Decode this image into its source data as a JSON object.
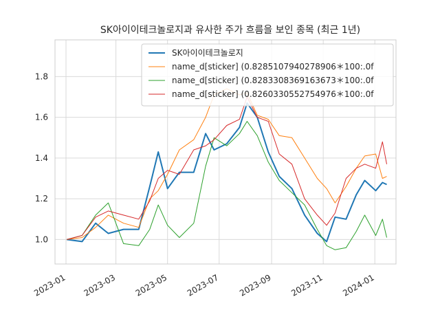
{
  "chart_data": {
    "type": "line",
    "title": "SK아이이테크놀로지과 유사한 주가 흐름을 보인 종목 (최근 1년)",
    "xlabel": "",
    "ylabel": "",
    "x_ticks": [
      "2023-01",
      "2023-03",
      "2023-05",
      "2023-07",
      "2023-09",
      "2023-11",
      "2024-01"
    ],
    "y_ticks": [
      "1.0",
      "1.2",
      "1.4",
      "1.6",
      "1.8"
    ],
    "xlim": [
      "2022-12-19",
      "2024-01-26"
    ],
    "ylim": [
      0.88,
      1.98
    ],
    "grid": true,
    "legend_position": "upper-right",
    "series": [
      {
        "name": "SK아이이테크놀로지",
        "color": "#1f77b4",
        "linewidth": 2,
        "points": [
          [
            "2023-01-02",
            1.0
          ],
          [
            "2023-01-20",
            0.99
          ],
          [
            "2023-02-05",
            1.08
          ],
          [
            "2023-02-20",
            1.03
          ],
          [
            "2023-03-10",
            1.05
          ],
          [
            "2023-03-28",
            1.05
          ],
          [
            "2023-04-10",
            1.26
          ],
          [
            "2023-04-20",
            1.43
          ],
          [
            "2023-05-01",
            1.25
          ],
          [
            "2023-05-15",
            1.33
          ],
          [
            "2023-06-01",
            1.33
          ],
          [
            "2023-06-15",
            1.52
          ],
          [
            "2023-06-25",
            1.44
          ],
          [
            "2023-07-10",
            1.47
          ],
          [
            "2023-07-25",
            1.55
          ],
          [
            "2023-08-03",
            1.67
          ],
          [
            "2023-08-15",
            1.6
          ],
          [
            "2023-08-28",
            1.43
          ],
          [
            "2023-09-10",
            1.31
          ],
          [
            "2023-09-25",
            1.25
          ],
          [
            "2023-10-10",
            1.12
          ],
          [
            "2023-10-25",
            1.03
          ],
          [
            "2023-11-05",
            0.99
          ],
          [
            "2023-11-15",
            1.11
          ],
          [
            "2023-11-28",
            1.1
          ],
          [
            "2023-12-10",
            1.22
          ],
          [
            "2023-12-20",
            1.29
          ],
          [
            "2024-01-02",
            1.24
          ],
          [
            "2024-01-10",
            1.28
          ],
          [
            "2024-01-15",
            1.27
          ]
        ]
      },
      {
        "name": "name_d[sticker]  (0.8285107940278906＊100:.0f",
        "color": "#ff7f0e",
        "linewidth": 1,
        "points": [
          [
            "2023-01-02",
            1.0
          ],
          [
            "2023-01-20",
            1.01
          ],
          [
            "2023-02-05",
            1.06
          ],
          [
            "2023-02-20",
            1.12
          ],
          [
            "2023-03-10",
            1.08
          ],
          [
            "2023-03-28",
            1.06
          ],
          [
            "2023-04-10",
            1.2
          ],
          [
            "2023-04-20",
            1.24
          ],
          [
            "2023-05-01",
            1.32
          ],
          [
            "2023-05-15",
            1.44
          ],
          [
            "2023-06-01",
            1.49
          ],
          [
            "2023-06-15",
            1.6
          ],
          [
            "2023-06-25",
            1.71
          ],
          [
            "2023-07-10",
            1.74
          ],
          [
            "2023-07-25",
            1.71
          ],
          [
            "2023-08-03",
            1.72
          ],
          [
            "2023-08-15",
            1.61
          ],
          [
            "2023-08-28",
            1.59
          ],
          [
            "2023-09-10",
            1.51
          ],
          [
            "2023-09-25",
            1.5
          ],
          [
            "2023-10-10",
            1.4
          ],
          [
            "2023-10-25",
            1.3
          ],
          [
            "2023-11-05",
            1.25
          ],
          [
            "2023-11-15",
            1.18
          ],
          [
            "2023-11-28",
            1.26
          ],
          [
            "2023-12-10",
            1.35
          ],
          [
            "2023-12-20",
            1.41
          ],
          [
            "2024-01-02",
            1.42
          ],
          [
            "2024-01-10",
            1.3
          ],
          [
            "2024-01-15",
            1.31
          ]
        ]
      },
      {
        "name": "name_d[sticker]  (0.8283308369163673＊100:.0f",
        "color": "#2ca02c",
        "linewidth": 1,
        "points": [
          [
            "2023-01-02",
            1.0
          ],
          [
            "2023-01-20",
            1.02
          ],
          [
            "2023-02-05",
            1.12
          ],
          [
            "2023-02-20",
            1.18
          ],
          [
            "2023-03-10",
            0.98
          ],
          [
            "2023-03-28",
            0.97
          ],
          [
            "2023-04-10",
            1.05
          ],
          [
            "2023-04-20",
            1.17
          ],
          [
            "2023-05-01",
            1.07
          ],
          [
            "2023-05-15",
            1.01
          ],
          [
            "2023-06-01",
            1.08
          ],
          [
            "2023-06-15",
            1.36
          ],
          [
            "2023-06-25",
            1.5
          ],
          [
            "2023-07-10",
            1.46
          ],
          [
            "2023-07-25",
            1.52
          ],
          [
            "2023-08-03",
            1.58
          ],
          [
            "2023-08-15",
            1.51
          ],
          [
            "2023-08-28",
            1.38
          ],
          [
            "2023-09-10",
            1.29
          ],
          [
            "2023-09-25",
            1.23
          ],
          [
            "2023-10-10",
            1.17
          ],
          [
            "2023-10-25",
            1.05
          ],
          [
            "2023-11-05",
            0.97
          ],
          [
            "2023-11-15",
            0.95
          ],
          [
            "2023-11-28",
            0.96
          ],
          [
            "2023-12-10",
            1.04
          ],
          [
            "2023-12-20",
            1.12
          ],
          [
            "2024-01-02",
            1.02
          ],
          [
            "2024-01-10",
            1.1
          ],
          [
            "2024-01-15",
            1.01
          ]
        ]
      },
      {
        "name": "name_d[sticker]  (0.8260330552754976＊100:.0f",
        "color": "#d62728",
        "linewidth": 1,
        "points": [
          [
            "2023-01-02",
            1.0
          ],
          [
            "2023-01-20",
            1.02
          ],
          [
            "2023-02-05",
            1.11
          ],
          [
            "2023-02-20",
            1.14
          ],
          [
            "2023-03-10",
            1.12
          ],
          [
            "2023-03-28",
            1.1
          ],
          [
            "2023-04-10",
            1.19
          ],
          [
            "2023-04-20",
            1.3
          ],
          [
            "2023-05-01",
            1.34
          ],
          [
            "2023-05-15",
            1.32
          ],
          [
            "2023-06-01",
            1.44
          ],
          [
            "2023-06-15",
            1.46
          ],
          [
            "2023-06-25",
            1.49
          ],
          [
            "2023-07-10",
            1.56
          ],
          [
            "2023-07-25",
            1.59
          ],
          [
            "2023-08-03",
            1.7
          ],
          [
            "2023-08-15",
            1.6
          ],
          [
            "2023-08-28",
            1.58
          ],
          [
            "2023-09-10",
            1.42
          ],
          [
            "2023-09-25",
            1.37
          ],
          [
            "2023-10-10",
            1.2
          ],
          [
            "2023-10-25",
            1.12
          ],
          [
            "2023-11-05",
            1.07
          ],
          [
            "2023-11-15",
            1.13
          ],
          [
            "2023-11-28",
            1.3
          ],
          [
            "2023-12-10",
            1.35
          ],
          [
            "2023-12-20",
            1.37
          ],
          [
            "2024-01-02",
            1.35
          ],
          [
            "2024-01-10",
            1.48
          ],
          [
            "2024-01-15",
            1.37
          ]
        ]
      }
    ]
  }
}
